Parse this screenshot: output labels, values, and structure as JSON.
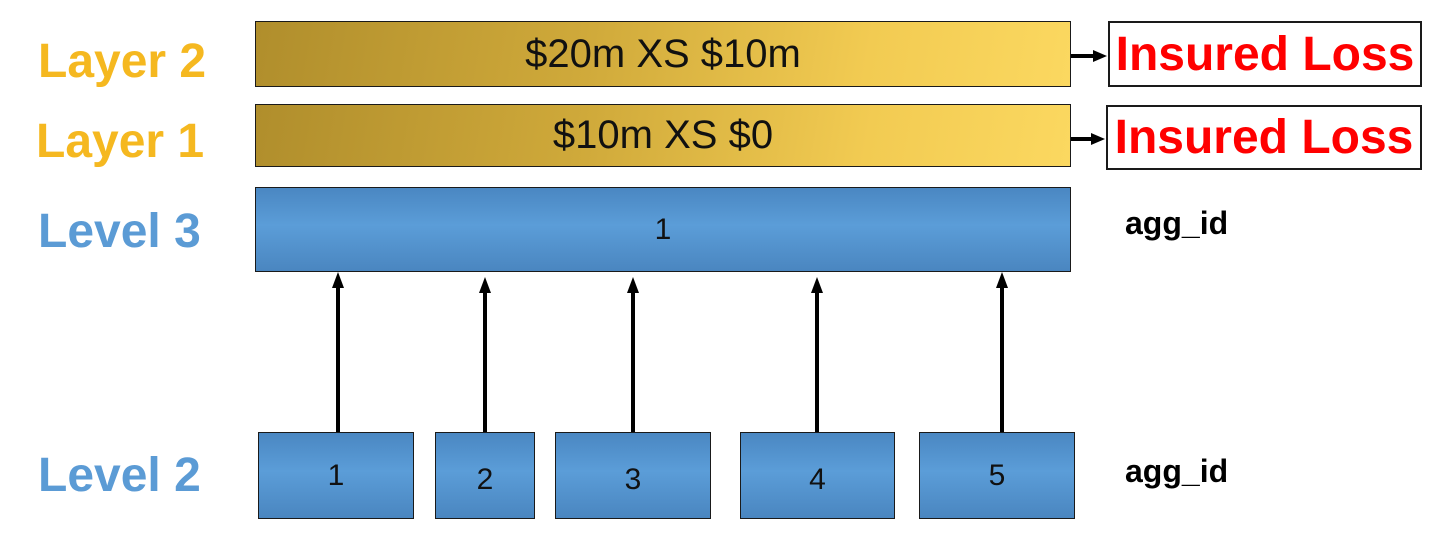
{
  "layers": [
    {
      "label": "Layer 2",
      "terms": "$20m XS $10m",
      "output": "Insured Loss"
    },
    {
      "label": "Layer 1",
      "terms": "$10m XS $0",
      "output": "Insured Loss"
    }
  ],
  "level3": {
    "label": "Level 3",
    "box": "1",
    "side_label": "agg_id"
  },
  "level2": {
    "label": "Level 2",
    "boxes": [
      "1",
      "2",
      "3",
      "4",
      "5"
    ],
    "side_label": "agg_id"
  },
  "colors": {
    "layer_text": "#f5b820",
    "level_text": "#5b9bd5",
    "loss_text": "#ff0000",
    "box_blue": "#5b9bd5",
    "layer_gold": "#f2cb52"
  }
}
